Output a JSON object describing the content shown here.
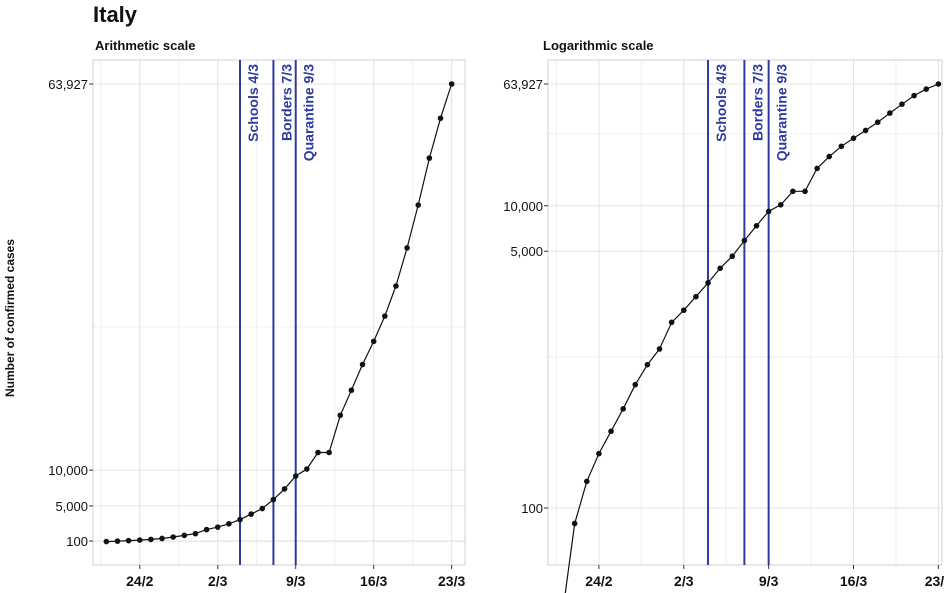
{
  "title": "Italy",
  "ylabel": "Number of confirmed cases",
  "colors": {
    "line": "#111111",
    "vline": "#2e3a9c",
    "grid": "#e3e3e3",
    "frame": "#d0d0d0"
  },
  "chart_data": [
    {
      "type": "line",
      "title": "Arithmetic scale",
      "scale": "linear",
      "ylabel": "Number of confirmed cases",
      "xlabel": "",
      "grid": true,
      "x_ticks": [
        {
          "day": 24,
          "label": "24/2"
        },
        {
          "day": 31,
          "label": "2/3"
        },
        {
          "day": 38,
          "label": "9/3"
        },
        {
          "day": 45,
          "label": "16/3"
        },
        {
          "day": 52,
          "label": "23/3"
        }
      ],
      "y_ticks": [
        {
          "value": 100,
          "label": "100"
        },
        {
          "value": 5000,
          "label": "5,000"
        },
        {
          "value": 10000,
          "label": "10,000"
        },
        {
          "value": 63927,
          "label": "63,927"
        }
      ],
      "vlines": [
        {
          "day": 33,
          "label": "Schools 4/3"
        },
        {
          "day": 36,
          "label": "Borders 7/3"
        },
        {
          "day": 38,
          "label": "Quarantine 9/3"
        }
      ],
      "series": [
        {
          "x": [
            21,
            22,
            23,
            24,
            25,
            26,
            27,
            28,
            29,
            30,
            31,
            32,
            33,
            34,
            35,
            36,
            37,
            38,
            39,
            40,
            41,
            42,
            43,
            44,
            45,
            46,
            47,
            48,
            49,
            50,
            51,
            52
          ],
          "values": [
            20,
            79,
            150,
            229,
            322,
            453,
            655,
            888,
            1128,
            1694,
            2036,
            2502,
            3089,
            3858,
            4636,
            5883,
            7375,
            9172,
            10149,
            12462,
            12462,
            17660,
            21157,
            24747,
            27980,
            31506,
            35713,
            41035,
            47021,
            53578,
            59138,
            63927
          ]
        }
      ]
    },
    {
      "type": "line",
      "title": "Logarithmic scale",
      "scale": "log",
      "xlabel": "",
      "ylabel": "",
      "grid": true,
      "x_ticks": [
        {
          "day": 24,
          "label": "24/2"
        },
        {
          "day": 31,
          "label": "2/3"
        },
        {
          "day": 38,
          "label": "9/3"
        },
        {
          "day": 45,
          "label": "16/3"
        },
        {
          "day": 52,
          "label": "23/3"
        }
      ],
      "y_ticks": [
        {
          "value": 100,
          "label": "100"
        },
        {
          "value": 5000,
          "label": "5,000"
        },
        {
          "value": 10000,
          "label": "10,000"
        },
        {
          "value": 63927,
          "label": "63,927"
        }
      ],
      "vlines": [
        {
          "day": 33,
          "label": "Schools 4/3"
        },
        {
          "day": 36,
          "label": "Borders 7/3"
        },
        {
          "day": 38,
          "label": "Quarantine 9/3"
        }
      ],
      "series": [
        {
          "x": [
            21,
            22,
            23,
            24,
            25,
            26,
            27,
            28,
            29,
            30,
            31,
            32,
            33,
            34,
            35,
            36,
            37,
            38,
            39,
            40,
            41,
            42,
            43,
            44,
            45,
            46,
            47,
            48,
            49,
            50,
            51,
            52
          ],
          "values": [
            20,
            79,
            150,
            229,
            322,
            453,
            655,
            888,
            1128,
            1694,
            2036,
            2502,
            3089,
            3858,
            4636,
            5883,
            7375,
            9172,
            10149,
            12462,
            12462,
            17660,
            21157,
            24747,
            27980,
            31506,
            35713,
            41035,
            47021,
            53578,
            59138,
            63927
          ]
        }
      ]
    }
  ]
}
